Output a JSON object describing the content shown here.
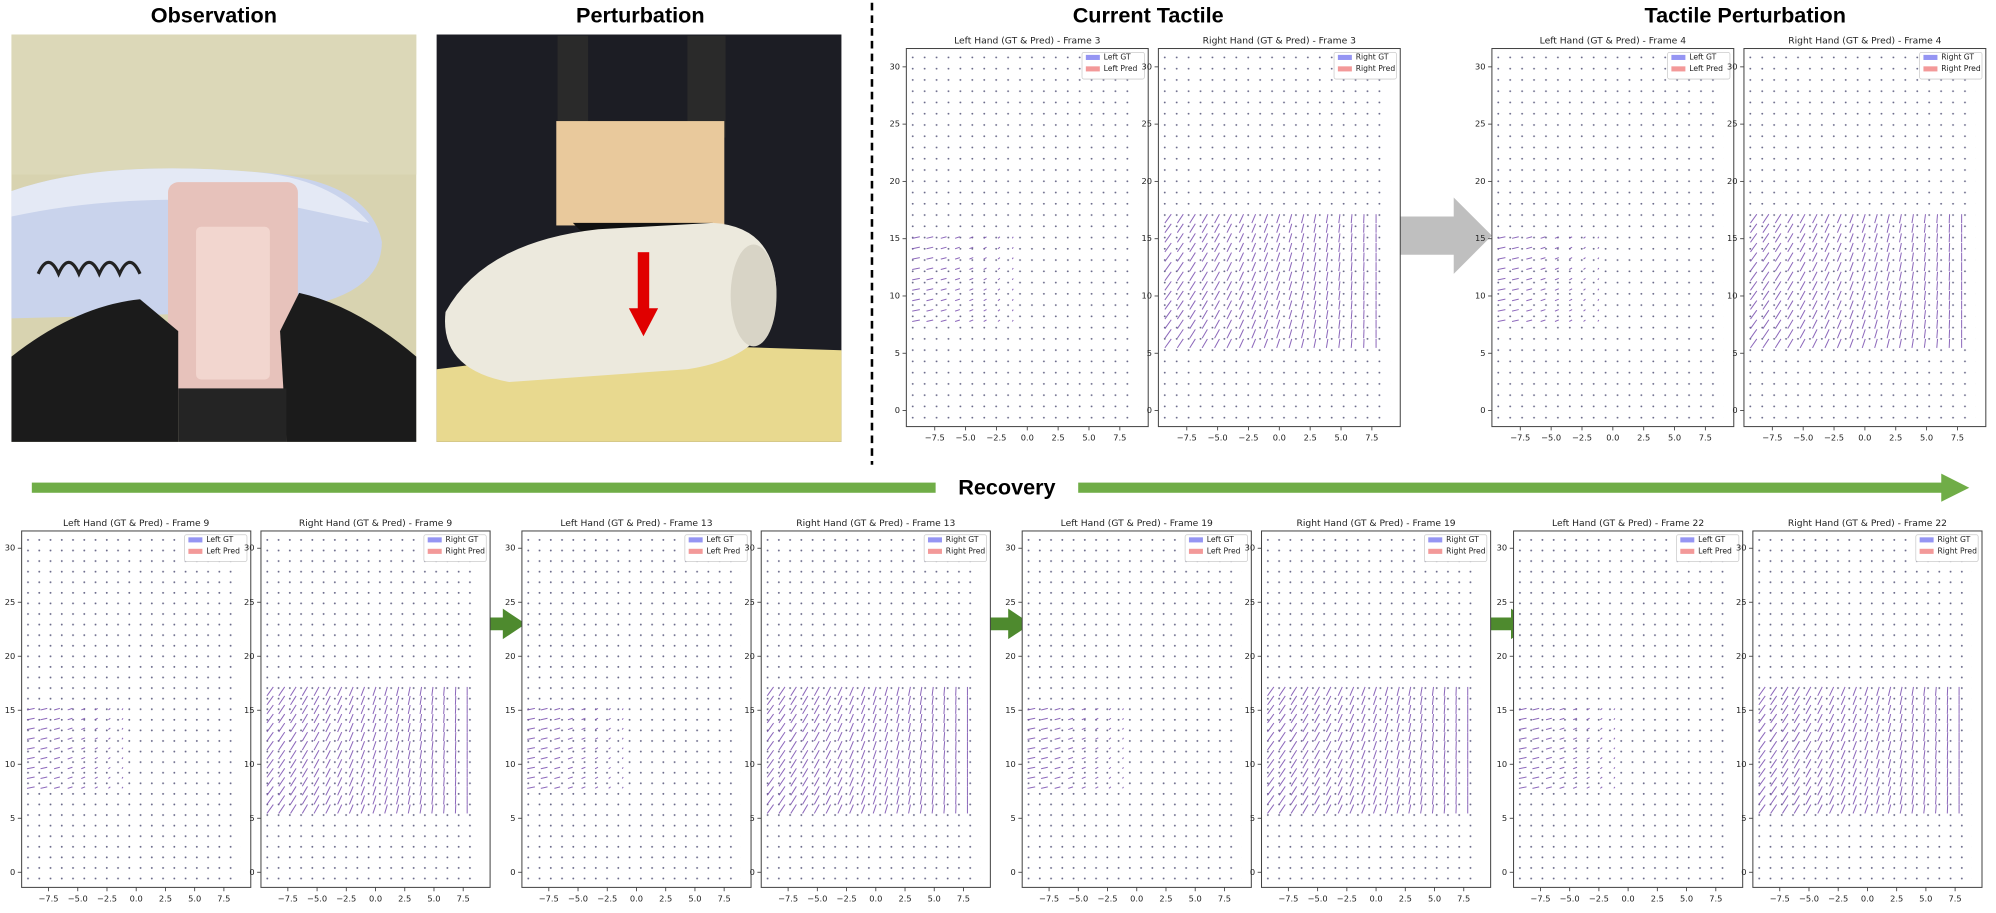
{
  "headings": {
    "observation": "Observation",
    "perturbation": "Perturbation",
    "current_tactile": "Current Tactile",
    "tactile_perturbation": "Tactile Perturbation",
    "recovery": "Recovery"
  },
  "axes": {
    "xlim": [
      -9.8,
      9.8
    ],
    "ylim": [
      -1.4,
      31.6
    ],
    "xticks": [
      {
        "value": -7.5,
        "label": "−7.5"
      },
      {
        "value": -5,
        "label": "−5.0"
      },
      {
        "value": -2.5,
        "label": "−2.5"
      },
      {
        "value": 0,
        "label": "0.0"
      },
      2.5,
      {
        "value": 5,
        "label": "5.0"
      },
      7.5
    ],
    "yticks": [
      0,
      5,
      10,
      15,
      20,
      25,
      30
    ]
  },
  "plots": [
    {
      "title": "Left Hand (GT & Pred) - Frame 3",
      "legend": [
        {
          "name": "Left GT",
          "color": "#7b7bf0"
        },
        {
          "name": "Left Pred",
          "color": "#f08080"
        }
      ]
    },
    {
      "title": "Right Hand (GT & Pred) - Frame 3",
      "legend": [
        {
          "name": "Right GT",
          "color": "#7b7bf0"
        },
        {
          "name": "Right Pred",
          "color": "#f08080"
        }
      ]
    },
    {
      "title": "Left Hand (GT & Pred) - Frame 4",
      "legend": [
        {
          "name": "Left GT",
          "color": "#7b7bf0"
        },
        {
          "name": "Left Pred",
          "color": "#f08080"
        }
      ]
    },
    {
      "title": "Right Hand (GT & Pred) - Frame 4",
      "legend": [
        {
          "name": "Right GT",
          "color": "#7b7bf0"
        },
        {
          "name": "Right Pred",
          "color": "#f08080"
        }
      ]
    },
    {
      "title": "Left Hand (GT & Pred) - Frame 9",
      "legend": [
        {
          "name": "Left GT",
          "color": "#7b7bf0"
        },
        {
          "name": "Left Pred",
          "color": "#f08080"
        }
      ]
    },
    {
      "title": "Right Hand (GT & Pred) - Frame 9",
      "legend": [
        {
          "name": "Right GT",
          "color": "#7b7bf0"
        },
        {
          "name": "Right Pred",
          "color": "#f08080"
        }
      ]
    },
    {
      "title": "Left Hand (GT & Pred) - Frame 13",
      "legend": [
        {
          "name": "Left GT",
          "color": "#7b7bf0"
        },
        {
          "name": "Left Pred",
          "color": "#f08080"
        }
      ]
    },
    {
      "title": "Right Hand (GT & Pred) - Frame 13",
      "legend": [
        {
          "name": "Right GT",
          "color": "#7b7bf0"
        },
        {
          "name": "Right Pred",
          "color": "#f08080"
        }
      ]
    },
    {
      "title": "Left Hand (GT & Pred) - Frame 19",
      "legend": [
        {
          "name": "Left GT",
          "color": "#7b7bf0"
        },
        {
          "name": "Left Pred",
          "color": "#f08080"
        }
      ]
    },
    {
      "title": "Right Hand (GT & Pred) - Frame 19",
      "legend": [
        {
          "name": "Right GT",
          "color": "#7b7bf0"
        },
        {
          "name": "Right Pred",
          "color": "#f08080"
        }
      ]
    },
    {
      "title": "Left Hand (GT & Pred) - Frame 22",
      "legend": [
        {
          "name": "Left GT",
          "color": "#7b7bf0"
        },
        {
          "name": "Left Pred",
          "color": "#f08080"
        }
      ]
    },
    {
      "title": "Right Hand (GT & Pred) - Frame 22",
      "legend": [
        {
          "name": "Right GT",
          "color": "#7b7bf0"
        },
        {
          "name": "Right Pred",
          "color": "#f08080"
        }
      ]
    }
  ]
}
